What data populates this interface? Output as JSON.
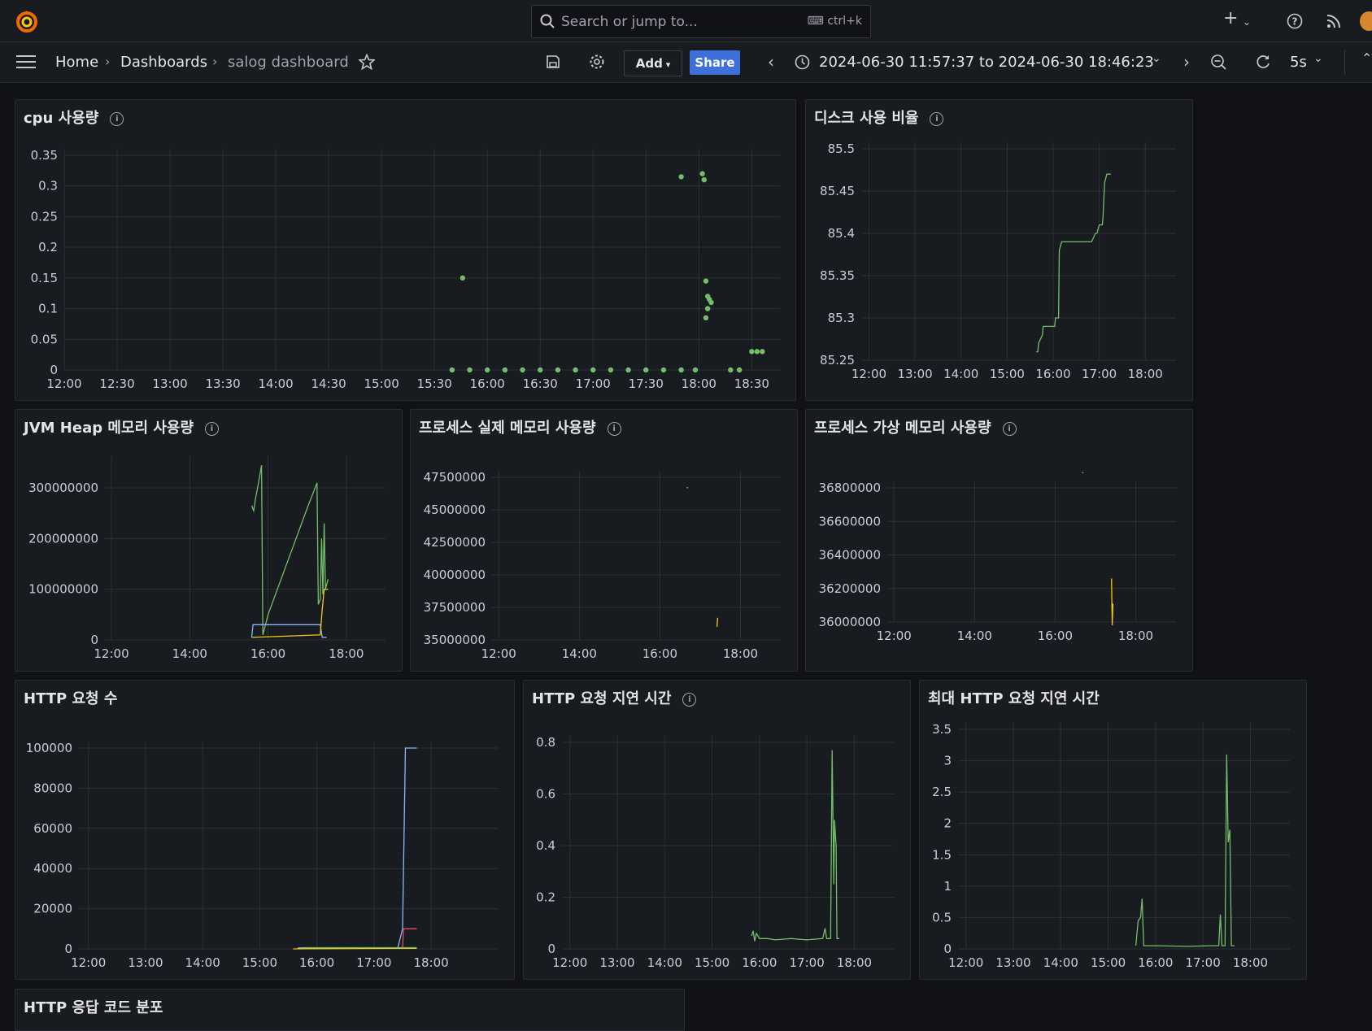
{
  "app": {
    "search_placeholder": "Search or jump to...",
    "search_shortcut": "ctrl+k"
  },
  "breadcrumb": {
    "home": "Home",
    "dashboards": "Dashboards",
    "current": "salog dashboard"
  },
  "toolbar": {
    "add_label": "Add",
    "share_label": "Share",
    "time_range": "2024-06-30 11:57:37 to 2024-06-30 18:46:23",
    "refresh_interval": "5s"
  },
  "colors": {
    "green": "#73bf69",
    "yellow": "#f2cc0c",
    "blue": "#8ab8ff",
    "red": "#f2495c",
    "accent": "#3d71d9"
  },
  "panels": {
    "cpu": {
      "title": "cpu 사용량"
    },
    "disk": {
      "title": "디스크 사용 비율"
    },
    "jvm": {
      "title": "JVM Heap 메모리 사용량"
    },
    "real_mem": {
      "title": "프로세스 실제 메모리 사용량"
    },
    "virt_mem": {
      "title": "프로세스 가상 메모리 사용량"
    },
    "http_count": {
      "title": "HTTP 요청 수"
    },
    "http_latency": {
      "title": "HTTP 요청 지연 시간"
    },
    "http_max_latency": {
      "title": "최대 HTTP 요청 지연 시간"
    },
    "http_codes": {
      "title": "HTTP 응답 코드 분포"
    }
  },
  "chart_data": [
    {
      "id": "cpu",
      "type": "scatter",
      "x_ticks": [
        "12:00",
        "12:30",
        "13:00",
        "13:30",
        "14:00",
        "14:30",
        "15:00",
        "15:30",
        "16:00",
        "16:30",
        "17:00",
        "17:30",
        "18:00",
        "18:30"
      ],
      "y_ticks": [
        "0",
        "0.05",
        "0.1",
        "0.15",
        "0.2",
        "0.25",
        "0.3",
        "0.35"
      ],
      "xlim": [
        720,
        1126
      ],
      "ylim": [
        0,
        0.35
      ],
      "series": [
        {
          "color": "green",
          "points": [
            [
              946,
              0.15
            ],
            [
              1070,
              0.315
            ],
            [
              1082,
              0.32
            ],
            [
              1083,
              0.31
            ],
            [
              1084,
              0.145
            ],
            [
              1085,
              0.12
            ],
            [
              1086,
              0.115
            ],
            [
              1087,
              0.11
            ],
            [
              1085,
              0.1
            ],
            [
              1084,
              0.085
            ],
            [
              1110,
              0.03
            ],
            [
              1113,
              0.03
            ],
            [
              1116,
              0.03
            ]
          ]
        },
        {
          "color": "green",
          "points": [
            [
              940,
              0
            ],
            [
              950,
              0
            ],
            [
              960,
              0
            ],
            [
              970,
              0
            ],
            [
              980,
              0
            ],
            [
              990,
              0
            ],
            [
              1000,
              0
            ],
            [
              1010,
              0
            ],
            [
              1020,
              0
            ],
            [
              1030,
              0
            ],
            [
              1040,
              0
            ],
            [
              1050,
              0
            ],
            [
              1060,
              0
            ],
            [
              1070,
              0
            ],
            [
              1078,
              0
            ],
            [
              1098,
              0
            ],
            [
              1103,
              0
            ]
          ]
        }
      ]
    },
    {
      "id": "disk",
      "type": "line",
      "x_ticks": [
        "12:00",
        "13:00",
        "14:00",
        "15:00",
        "16:00",
        "17:00",
        "18:00"
      ],
      "y_ticks": [
        "85.25",
        "85.3",
        "85.35",
        "85.4",
        "85.45",
        "85.5"
      ],
      "xlim": [
        710,
        1120
      ],
      "ylim": [
        85.25,
        85.5
      ],
      "series": [
        {
          "color": "green",
          "points": [
            [
              938,
              85.26
            ],
            [
              940,
              85.26
            ],
            [
              941,
              85.27
            ],
            [
              946,
              85.28
            ],
            [
              947,
              85.29
            ],
            [
              962,
              85.29
            ],
            [
              963,
              85.3
            ],
            [
              967,
              85.3
            ],
            [
              968,
              85.38
            ],
            [
              971,
              85.39
            ],
            [
              984,
              85.39
            ],
            [
              1000,
              85.39
            ],
            [
              1010,
              85.39
            ],
            [
              1015,
              85.4
            ],
            [
              1017,
              85.4
            ],
            [
              1020,
              85.41
            ],
            [
              1024,
              85.41
            ],
            [
              1025,
              85.42
            ],
            [
              1027,
              85.46
            ],
            [
              1030,
              85.47
            ],
            [
              1035,
              85.47
            ]
          ]
        }
      ]
    },
    {
      "id": "jvm",
      "type": "line",
      "x_ticks": [
        "12:00",
        "14:00",
        "16:00",
        "18:00"
      ],
      "y_ticks": [
        "0",
        "100000000",
        "200000000",
        "300000000"
      ],
      "xlim": [
        710,
        1140
      ],
      "ylim": [
        0,
        350000000
      ],
      "series": [
        {
          "color": "green",
          "points": [
            [
              935,
              265000000
            ],
            [
              938,
              255000000
            ],
            [
              941,
              280000000
            ],
            [
              944,
              300000000
            ],
            [
              948,
              330000000
            ],
            [
              950,
              345000000
            ],
            [
              952,
              10000000
            ],
            [
              960,
              50000000
            ],
            [
              980,
              120000000
            ],
            [
              1000,
              190000000
            ],
            [
              1020,
              260000000
            ],
            [
              1035,
              310000000
            ],
            [
              1037,
              70000000
            ],
            [
              1040,
              80000000
            ],
            [
              1042,
              200000000
            ],
            [
              1044,
              90000000
            ],
            [
              1046,
              230000000
            ],
            [
              1048,
              100000000
            ],
            [
              1052,
              120000000
            ]
          ]
        },
        {
          "color": "blue",
          "points": [
            [
              935,
              5000000
            ],
            [
              937,
              30000000
            ],
            [
              1040,
              30000000
            ],
            [
              1043,
              5000000
            ],
            [
              1050,
              5000000
            ]
          ]
        },
        {
          "color": "yellow",
          "points": [
            [
              935,
              5000000
            ],
            [
              1040,
              10000000
            ],
            [
              1043,
              60000000
            ],
            [
              1046,
              100000000
            ],
            [
              1052,
              100000000
            ]
          ]
        }
      ]
    },
    {
      "id": "real_mem",
      "type": "line",
      "x_ticks": [
        "12:00",
        "14:00",
        "16:00",
        "18:00"
      ],
      "y_ticks": [
        "35000000",
        "37500000",
        "40000000",
        "42500000",
        "45000000",
        "47500000"
      ],
      "xlim": [
        710,
        1140
      ],
      "ylim": [
        35000000,
        47500000
      ],
      "series": [
        {
          "color": "green",
          "points": [
            [
              1000,
              46700000
            ],
            [
              1002,
              46700000
            ]
          ]
        },
        {
          "color": "yellow",
          "points": [
            [
              1045,
              36000000
            ],
            [
              1046,
              36700000
            ]
          ]
        }
      ]
    },
    {
      "id": "virt_mem",
      "type": "line",
      "x_ticks": [
        "12:00",
        "14:00",
        "16:00",
        "18:00"
      ],
      "y_ticks": [
        "36000000",
        "36200000",
        "36400000",
        "36600000",
        "36800000"
      ],
      "xlim": [
        710,
        1140
      ],
      "ylim": [
        36000000,
        36800000
      ],
      "series": [
        {
          "color": "green",
          "points": [
            [
              1000,
              36890000
            ],
            [
              1002,
              36890000
            ]
          ]
        },
        {
          "color": "yellow",
          "points": [
            [
              1044,
              36260000
            ],
            [
              1045,
              35980000
            ],
            [
              1046,
              36110000
            ]
          ]
        }
      ]
    },
    {
      "id": "http_count",
      "type": "line",
      "x_ticks": [
        "12:00",
        "13:00",
        "14:00",
        "15:00",
        "16:00",
        "17:00",
        "18:00"
      ],
      "y_ticks": [
        "0",
        "20000",
        "40000",
        "60000",
        "80000",
        "100000"
      ],
      "xlim": [
        710,
        1150
      ],
      "ylim": [
        0,
        100000
      ],
      "series": [
        {
          "color": "blue",
          "points": [
            [
              940,
              500
            ],
            [
              1030,
              500
            ],
            [
              1045,
              500
            ],
            [
              1050,
              10000
            ],
            [
              1053,
              100000
            ],
            [
              1065,
              100000
            ]
          ]
        },
        {
          "color": "yellow",
          "points": [
            [
              935,
              0
            ],
            [
              1065,
              300
            ]
          ]
        },
        {
          "color": "red",
          "points": [
            [
              1050,
              300
            ],
            [
              1051,
              10000
            ],
            [
              1065,
              10000
            ]
          ]
        },
        {
          "color": "green",
          "points": [
            [
              945,
              600
            ],
            [
              1065,
              600
            ]
          ]
        }
      ]
    },
    {
      "id": "http_latency",
      "type": "line",
      "x_ticks": [
        "12:00",
        "13:00",
        "14:00",
        "15:00",
        "16:00",
        "17:00",
        "18:00"
      ],
      "y_ticks": [
        "0",
        "0.2",
        "0.4",
        "0.6",
        "0.8"
      ],
      "xlim": [
        710,
        1130
      ],
      "ylim": [
        0,
        0.8
      ],
      "series": [
        {
          "color": "green",
          "points": [
            [
              950,
              0.05
            ],
            [
              952,
              0.07
            ],
            [
              954,
              0.03
            ],
            [
              956,
              0.06
            ],
            [
              960,
              0.04
            ],
            [
              970,
              0.04
            ],
            [
              980,
              0.035
            ],
            [
              1000,
              0.04
            ],
            [
              1020,
              0.035
            ],
            [
              1040,
              0.04
            ],
            [
              1043,
              0.08
            ],
            [
              1045,
              0.04
            ],
            [
              1050,
              0.04
            ],
            [
              1052,
              0.77
            ],
            [
              1054,
              0.25
            ],
            [
              1055,
              0.5
            ],
            [
              1057,
              0.4
            ],
            [
              1058,
              0.04
            ],
            [
              1061,
              0.04
            ]
          ]
        }
      ]
    },
    {
      "id": "http_max_latency",
      "type": "line",
      "x_ticks": [
        "12:00",
        "13:00",
        "14:00",
        "15:00",
        "16:00",
        "17:00",
        "18:00"
      ],
      "y_ticks": [
        "0",
        "0.5",
        "1",
        "1.5",
        "2",
        "2.5",
        "3",
        "3.5"
      ],
      "xlim": [
        710,
        1130
      ],
      "ylim": [
        0,
        3.5
      ],
      "series": [
        {
          "color": "green",
          "points": [
            [
              935,
              0.05
            ],
            [
              938,
              0.45
            ],
            [
              941,
              0.5
            ],
            [
              943,
              0.8
            ],
            [
              945,
              0.05
            ],
            [
              960,
              0.05
            ],
            [
              1000,
              0.04
            ],
            [
              1030,
              0.05
            ],
            [
              1040,
              0.05
            ],
            [
              1042,
              0.55
            ],
            [
              1044,
              0.05
            ],
            [
              1048,
              0.05
            ],
            [
              1050,
              3.1
            ],
            [
              1052,
              1.7
            ],
            [
              1054,
              1.9
            ],
            [
              1056,
              0.05
            ],
            [
              1060,
              0.05
            ]
          ]
        }
      ]
    }
  ]
}
